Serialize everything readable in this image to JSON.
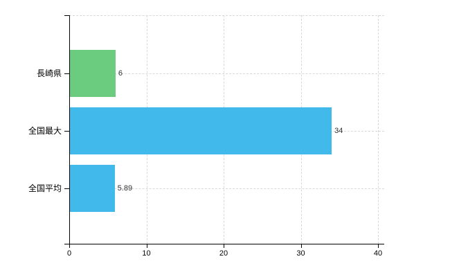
{
  "chart_data": {
    "type": "bar",
    "orientation": "horizontal",
    "title": "",
    "xlabel": "",
    "ylabel": "",
    "categories": [
      "長崎県",
      "全国最大",
      "全国平均"
    ],
    "values": [
      6,
      34,
      5.89
    ],
    "value_labels": [
      "6",
      "34",
      "5.89"
    ],
    "bar_colors": [
      "#6bcc80",
      "#41b9eb",
      "#41b9eb"
    ],
    "xlim": [
      0,
      40
    ],
    "x_ticks": [
      0,
      10,
      20,
      30,
      40
    ],
    "x_tick_labels": [
      "0",
      "10",
      "20",
      "30",
      "40"
    ],
    "grid": "on",
    "grid_style": "dashed",
    "legend": "none",
    "background_color": "#ffffff",
    "grid_color": "#d8d8d8",
    "axis_color": "#000000",
    "label_color": "#000000",
    "value_label_color": "#333333"
  }
}
